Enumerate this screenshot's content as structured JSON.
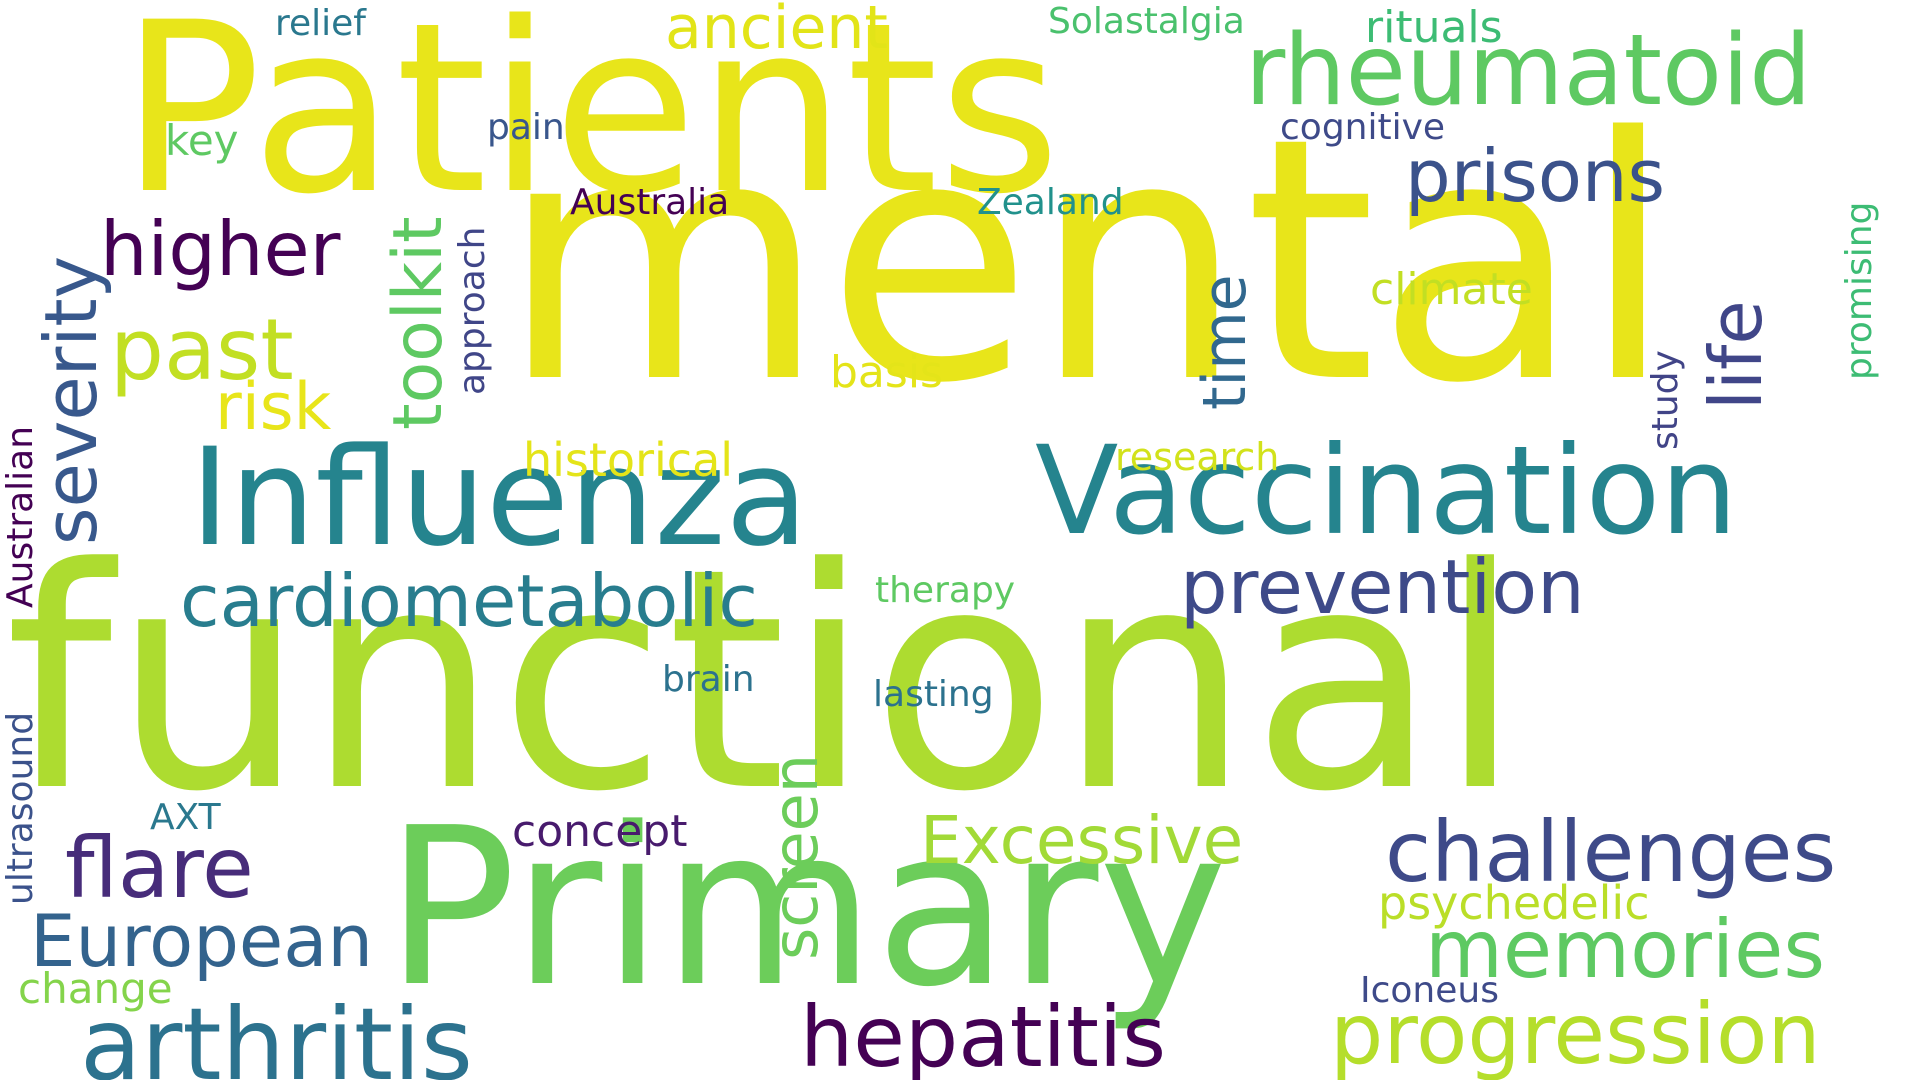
{
  "words": [
    {
      "text": "mental",
      "color": "#e8e51a"
    },
    {
      "text": "functional",
      "color": "#addc30"
    },
    {
      "text": "Patients",
      "color": "#e8e51a"
    },
    {
      "text": "Primary",
      "color": "#6ccd5a"
    },
    {
      "text": "Influenza",
      "color": "#25848e"
    },
    {
      "text": "Vaccination",
      "color": "#25848e"
    },
    {
      "text": "rheumatoid",
      "color": "#5ec962"
    },
    {
      "text": "arthritis",
      "color": "#2c728e"
    },
    {
      "text": "progression",
      "color": "#b5de2b"
    },
    {
      "text": "hepatitis",
      "color": "#440154"
    },
    {
      "text": "challenges",
      "color": "#3e4a89"
    },
    {
      "text": "cardiometabolic",
      "color": "#287d8e"
    },
    {
      "text": "prevention",
      "color": "#3e4a89"
    },
    {
      "text": "memories",
      "color": "#5ec962"
    },
    {
      "text": "European",
      "color": "#33638d"
    },
    {
      "text": "flare",
      "color": "#472c7a"
    },
    {
      "text": "Excessive",
      "color": "#a2da37"
    },
    {
      "text": "severity",
      "color": "#38588c"
    },
    {
      "text": "prisons",
      "color": "#3b528b"
    },
    {
      "text": "higher",
      "color": "#440154"
    },
    {
      "text": "past",
      "color": "#c2df23"
    },
    {
      "text": "toolkit",
      "color": "#5ec962"
    },
    {
      "text": "life",
      "color": "#404688"
    },
    {
      "text": "time",
      "color": "#31688e"
    },
    {
      "text": "screen",
      "color": "#6ccd5a"
    },
    {
      "text": "risk",
      "color": "#e8e51a"
    },
    {
      "text": "ancient",
      "color": "#e2e418"
    },
    {
      "text": "psychedelic",
      "color": "#bade28"
    },
    {
      "text": "concept",
      "color": "#481b6d"
    },
    {
      "text": "historical",
      "color": "#e4e419"
    },
    {
      "text": "rituals",
      "color": "#3dbc74"
    },
    {
      "text": "climate",
      "color": "#c2df23"
    },
    {
      "text": "basis",
      "color": "#e4e419"
    },
    {
      "text": "research",
      "color": "#d2e21b"
    },
    {
      "text": "therapy",
      "color": "#5ec962"
    },
    {
      "text": "change",
      "color": "#84d44b"
    },
    {
      "text": "Solastalgia",
      "color": "#4ac16d"
    },
    {
      "text": "relief",
      "color": "#2a788e"
    },
    {
      "text": "Zealand",
      "color": "#21918c"
    },
    {
      "text": "Australia",
      "color": "#440154"
    },
    {
      "text": "cognitive",
      "color": "#3e4a89"
    },
    {
      "text": "pain",
      "color": "#39568c"
    },
    {
      "text": "key",
      "color": "#5ec962"
    },
    {
      "text": "approach",
      "color": "#404688"
    },
    {
      "text": "study",
      "color": "#414487"
    },
    {
      "text": "promising",
      "color": "#3dbc74"
    },
    {
      "text": "Australian",
      "color": "#440154"
    },
    {
      "text": "ultrasound",
      "color": "#3b528b"
    },
    {
      "text": "AXT",
      "color": "#2a788e"
    },
    {
      "text": "brain",
      "color": "#2c728e"
    },
    {
      "text": "lasting",
      "color": "#2c728e"
    },
    {
      "text": "Iconeus",
      "color": "#3e4a89"
    }
  ]
}
